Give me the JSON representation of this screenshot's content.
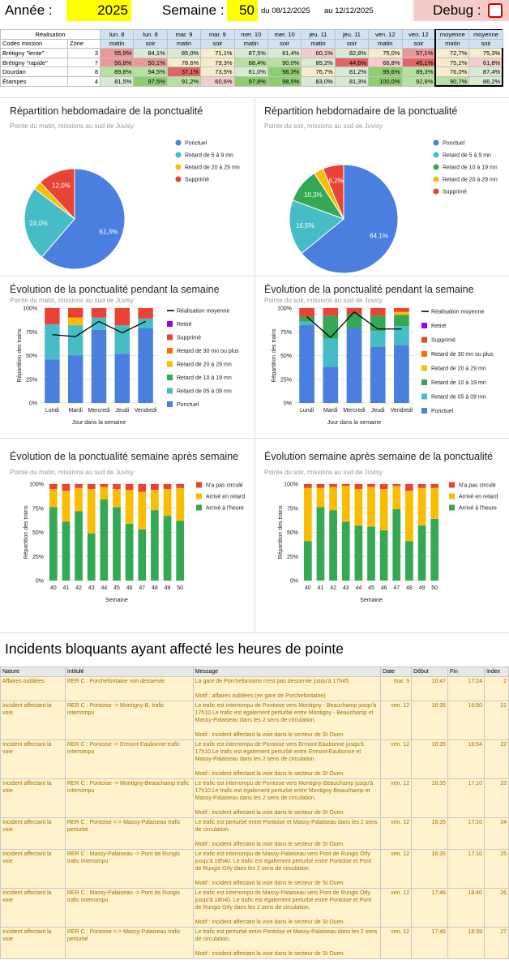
{
  "header": {
    "annee_label": "Année :",
    "annee": "2025",
    "semaine_label": "Semaine :",
    "semaine": "50",
    "du": "du 08/12/2025",
    "au": "au 12/12/2025",
    "debug_label": "Debug :"
  },
  "realisation": {
    "label": "Réalisation",
    "days": [
      "lun. 8",
      "lun. 8",
      "mar. 9",
      "mar. 9",
      "mer. 10",
      "mer. 10",
      "jeu. 11",
      "jeu. 11",
      "ven. 12",
      "ven. 12",
      "moyenne",
      "moyenne"
    ],
    "periods": [
      "matin",
      "soir",
      "matin",
      "soir",
      "matin",
      "soir",
      "matin",
      "soir",
      "matin",
      "soir",
      "matin",
      "soir"
    ],
    "col1": "Codes mission",
    "col2": "Zone",
    "rows": [
      {
        "name": "Brétigny \"lente\"",
        "zone": "3",
        "vals": [
          "55,9%",
          "84,1%",
          "85,0%",
          "71,1%",
          "87,5%",
          "81,4%",
          "60,1%",
          "82,8%",
          "75,0%",
          "57,1%",
          "72,7%",
          "75,3%"
        ]
      },
      {
        "name": "Brétigny \"rapide\"",
        "zone": "7",
        "vals": [
          "56,8%",
          "50,1%",
          "78,6%",
          "79,3%",
          "88,4%",
          "90,0%",
          "85,2%",
          "44,6%",
          "66,8%",
          "45,1%",
          "75,2%",
          "61,8%"
        ]
      },
      {
        "name": "Dourdan",
        "zone": "8",
        "vals": [
          "89,8%",
          "94,5%",
          "37,1%",
          "73,5%",
          "81,0%",
          "98,3%",
          "76,7%",
          "81,2%",
          "95,6%",
          "89,3%",
          "76,0%",
          "87,4%"
        ]
      },
      {
        "name": "Étampes",
        "zone": "4",
        "vals": [
          "81,5%",
          "97,5%",
          "91,2%",
          "60,6%",
          "97,8%",
          "98,5%",
          "83,0%",
          "81,3%",
          "100,0%",
          "92,9%",
          "90,7%",
          "86,2%"
        ]
      }
    ]
  },
  "colors": {
    "ponctuel": "#4a7fe0",
    "retard5": "#46bdc6",
    "retard10": "#34a853",
    "retard20": "#fbbc04",
    "retard30": "#ff6d01",
    "supprime": "#ea4335",
    "retire": "#9900ff",
    "line": "#000000"
  },
  "charts": {
    "pie_matin": {
      "title": "Répartition hebdomadaire de la ponctualité",
      "subtitle": "Pointe du matin, missions au sud de Juvisy"
    },
    "pie_soir": {
      "title": "Répartition hebdomadaire de la ponctualité",
      "subtitle": "Pointe du soir, missions au sud de Juvisy"
    },
    "jour_matin": {
      "title": "Évolution de la ponctualité pendant la semaine",
      "subtitle": "Pointe du matin, missions au sud de Juvisy"
    },
    "jour_soir": {
      "title": "Évolution de la ponctualité pendant la semaine",
      "subtitle": "Pointe du soir, missions au sud de Juvisy"
    },
    "sem_matin": {
      "title": "Évolution de la ponctualité semaine après semaine",
      "subtitle": "Pointe du matin, missions au sud de Juvisy"
    },
    "sem_soir": {
      "title": "Évolution semaine après semaine de la ponctualité",
      "subtitle": "Pointe du soir, missions au sud de Juvisy"
    }
  },
  "chart_data": [
    {
      "type": "pie",
      "id": "pie_matin",
      "title": "Répartition hebdomadaire de la ponctualité",
      "slices": [
        {
          "name": "Ponctuel",
          "value": 61.3,
          "label": "61,3%"
        },
        {
          "name": "Retard de 5 à 9 mn",
          "value": 24.0,
          "label": "24,0%"
        },
        {
          "name": "Retard de 20 à 29 mn",
          "value": 2.7,
          "label": ""
        },
        {
          "name": "Supprimé",
          "value": 12.0,
          "label": "12,0%"
        }
      ]
    },
    {
      "type": "pie",
      "id": "pie_soir",
      "title": "Répartition hebdomadaire de la ponctualité",
      "slices": [
        {
          "name": "Ponctuel",
          "value": 64.1,
          "label": "64,1%"
        },
        {
          "name": "Retard de 5 à 9 mn",
          "value": 16.5,
          "label": "16,5%"
        },
        {
          "name": "Retard de 10 à 19 mn",
          "value": 10.3,
          "label": "10,3%"
        },
        {
          "name": "Retard de 20 à 29 mn",
          "value": 2.9,
          "label": ""
        },
        {
          "name": "Supprimé",
          "value": 6.2,
          "label": "6,2%"
        }
      ]
    },
    {
      "type": "bar",
      "id": "jour_matin",
      "stacked": true,
      "categories": [
        "Lundi",
        "Mardi",
        "Mercredi",
        "Jeudi",
        "Vendredi"
      ],
      "xlabel": "Jour dans la semaine",
      "ylabel": "Répartition des trains",
      "yticks": [
        "0%",
        "25%",
        "50%",
        "75%",
        "100%"
      ],
      "series": [
        {
          "name": "Ponctuel",
          "key": "ponctuel",
          "values": [
            46,
            50,
            77,
            52,
            79
          ]
        },
        {
          "name": "Retard de 05 à 09 mn",
          "key": "retard5",
          "values": [
            37,
            32,
            13,
            30,
            10
          ]
        },
        {
          "name": "Retard de 10 à 19 mn",
          "key": "retard10",
          "values": [
            0,
            0,
            0,
            0,
            0
          ]
        },
        {
          "name": "Retard de 20 à 29 mn",
          "key": "retard20",
          "values": [
            0,
            8,
            0,
            0,
            0
          ]
        },
        {
          "name": "Retard de 30 mn ou plus",
          "key": "retard30",
          "values": [
            0,
            0,
            0,
            0,
            0
          ]
        },
        {
          "name": "Supprimé",
          "key": "supprime",
          "values": [
            17,
            10,
            10,
            18,
            11
          ]
        },
        {
          "name": "Retiré",
          "key": "retire",
          "values": [
            0,
            0,
            0,
            0,
            0
          ]
        }
      ],
      "line": {
        "name": "Réalisation moyenne",
        "values": [
          72,
          70,
          86,
          74,
          86
        ]
      },
      "legend": [
        "Réalisation moyenne",
        "Retiré",
        "Supprimé",
        "Retard de 30 mn ou plus",
        "Retard de 20 à 29 mn",
        "Retard de 10 à 19 mn",
        "Retard de 05 à 09 mn",
        "Ponctuel"
      ]
    },
    {
      "type": "bar",
      "id": "jour_soir",
      "stacked": true,
      "categories": [
        "Lundi",
        "Mardi",
        "Mercredi",
        "Jeudi",
        "Vendredi"
      ],
      "xlabel": "Jour dans la semaine",
      "ylabel": "Répartition des trains",
      "yticks": [
        "0%",
        "25%",
        "50%",
        "75%",
        "100%"
      ],
      "series": [
        {
          "name": "Ponctuel",
          "key": "ponctuel",
          "values": [
            82,
            38,
            79,
            59,
            61
          ]
        },
        {
          "name": "Retard de 05 à 09 mn",
          "key": "retard5",
          "values": [
            4,
            30,
            0,
            17,
            20
          ]
        },
        {
          "name": "Retard de 10 à 19 mn",
          "key": "retard10",
          "values": [
            5,
            24,
            15,
            16,
            12
          ]
        },
        {
          "name": "Retard de 20 à 29 mn",
          "key": "retard20",
          "values": [
            0,
            0,
            0,
            0,
            3
          ]
        },
        {
          "name": "Retard de 30 mn ou plus",
          "key": "retard30",
          "values": [
            0,
            0,
            0,
            0,
            0
          ]
        },
        {
          "name": "Supprimé",
          "key": "supprime",
          "values": [
            9,
            8,
            6,
            8,
            4
          ]
        },
        {
          "name": "Retiré",
          "key": "retire",
          "values": [
            0,
            0,
            0,
            0,
            0
          ]
        }
      ],
      "line": {
        "name": "Réalisation moyenne",
        "values": [
          91,
          69,
          96,
          78,
          78
        ]
      },
      "legend": [
        "Réalisation moyenne",
        "Retiré",
        "Supprimé",
        "Retard de 30 mn ou plus",
        "Retard de 20 à 29 mn",
        "Retard de 10 à 19 mn",
        "Retard de 05 à 09 mn",
        "Ponctuel"
      ]
    },
    {
      "type": "bar",
      "id": "sem_matin",
      "stacked": true,
      "categories": [
        "40",
        "41",
        "42",
        "43",
        "44",
        "45",
        "46",
        "47",
        "48",
        "49",
        "50"
      ],
      "xlabel": "Semaine",
      "ylabel": "Répartition des trains",
      "yticks": [
        "0%",
        "25%",
        "50%",
        "75%",
        "100%"
      ],
      "series": [
        {
          "name": "Arrivé à l'heure",
          "key": "retard10",
          "values": [
            76,
            61,
            72,
            49,
            84,
            76,
            59,
            53,
            73,
            67,
            62
          ]
        },
        {
          "name": "Arrivé en retard",
          "key": "retard20",
          "values": [
            19,
            32,
            24,
            46,
            13,
            19,
            35,
            39,
            21,
            28,
            34
          ]
        },
        {
          "name": "N'a pas circulé",
          "key": "supprime",
          "values": [
            5,
            7,
            4,
            5,
            3,
            5,
            6,
            8,
            6,
            5,
            4
          ]
        }
      ],
      "legend": [
        "N'a pas circulé",
        "Arrivé en retard",
        "Arrivé à l'heure"
      ]
    },
    {
      "type": "bar",
      "id": "sem_soir",
      "stacked": true,
      "categories": [
        "40",
        "41",
        "42",
        "43",
        "44",
        "45",
        "46",
        "47",
        "48",
        "49",
        "50"
      ],
      "xlabel": "Semaine",
      "ylabel": "Répartition des trains",
      "yticks": [
        "0%",
        "25%",
        "50%",
        "75%",
        "100%"
      ],
      "series": [
        {
          "name": "Arrivé à l'heure",
          "key": "retard10",
          "values": [
            41,
            76,
            73,
            61,
            57,
            56,
            52,
            74,
            41,
            57,
            64
          ]
        },
        {
          "name": "Arrivé en retard",
          "key": "retard20",
          "values": [
            55,
            20,
            24,
            37,
            38,
            41,
            43,
            24,
            52,
            39,
            32
          ]
        },
        {
          "name": "N'a pas circulé",
          "key": "supprime",
          "values": [
            4,
            4,
            3,
            2,
            5,
            3,
            5,
            2,
            7,
            4,
            4
          ]
        }
      ],
      "legend": [
        "N'a pas circulé",
        "Arrivé en retard",
        "Arrivé à l'heure"
      ]
    }
  ],
  "incidents": {
    "title": "Incidents bloquants ayant affecté les heures de pointe",
    "headers": [
      "Nature",
      "Intitulé",
      "Message",
      "Date",
      "Début",
      "Fin",
      "Index"
    ],
    "rows": [
      {
        "nature": "Affaires oubliées",
        "intitule": "RER C : Porchefontaine non desservie",
        "message": "La gare de Porchefontaine n'est pas desservie jusqu'à 17h45.",
        "motif": "Motif : affaires oubliées (en gare de Porchefontaine).",
        "date": "mar. 9",
        "debut": "16:47",
        "fin": "17:24",
        "index": "2"
      },
      {
        "nature": "Incident affectant la voie",
        "intitule": "RER C : Pontoise -> Montigny-B. trafic interrompu",
        "message": "Le trafic est interrompu de Pontoise vers Montigny - Beauchamp jusqu'à 17h10.Le trafic est également perturbé entre Montigny - Beauchamp et Massy-Palaiseau dans les 2 sens de circulation.",
        "motif": "Motif : incident affectant la voie dans le secteur de St Ouen.",
        "date": "ven. 12",
        "debut": "16:35",
        "fin": "16:50",
        "index": "21"
      },
      {
        "nature": "Incident affectant la voie",
        "intitule": "RER C : Pontoise -> Ermont-Eaubonne trafic interrompu",
        "message": "Le trafic est interrompu de Pontoise vers Ermont-Eaubonne jusqu'à 17h10.Le trafic est également perturbé entre Ermont-Eaubonne et Massy-Palaiseau dans les 2 sens de circulation.",
        "motif": "Motif : incident affectant la voie dans le secteur de St Ouen.",
        "date": "ven. 12",
        "debut": "16:35",
        "fin": "16:54",
        "index": "22"
      },
      {
        "nature": "Incident affectant la voie",
        "intitule": "RER C : Pontoise -> Montigny-Beauchamp trafic interrompu",
        "message": "Le trafic est interrompu de Pontoise vers Montigny-Beauchamp jusqu'à 17h10.Le trafic est également perturbé entre Montigny-Beauchamp et Massy-Palaiseau dans les 2 sens de circulation.",
        "motif": "Motif : incident affectant la voie dans le secteur de St Ouen.",
        "date": "ven. 12",
        "debut": "16:35",
        "fin": "17:10",
        "index": "23"
      },
      {
        "nature": "Incident affectant la voie",
        "intitule": "RER C : Pontoise <-> Massy-Palaiseau trafic perturbé",
        "message": "Le trafic est perturbé entre Pontoise et Massy-Palaiseau dans les 2 sens de circulation.",
        "motif": "Motif : incident affectant la voie dans le secteur de St Ouen.",
        "date": "ven. 12",
        "debut": "16:35",
        "fin": "17:10",
        "index": "24"
      },
      {
        "nature": "Incident affectant la voie",
        "intitule": "RER C : Massy-Palaiseau -> Pont de Rungis trafic interrompu",
        "message": "Le trafic est interrompu de Massy-Palaiseau vers Pont de Rungis Orly jusqu'à 18h40. Le trafic est également perturbé entre Pontoise et Pont de Rungis Orly dans les 2 sens de circulation.",
        "motif": "Motif : incident affectant la voie dans le secteur de St Ouen.",
        "date": "ven. 12",
        "debut": "16:35",
        "fin": "17:10",
        "index": "25"
      },
      {
        "nature": "Incident affectant la voie",
        "intitule": "RER C : Massy-Palaiseau -> Pont de Rungis trafic interrompu",
        "message": "Le trafic est interrompu de Massy-Palaiseau vers Pont de Rungis Orly jusqu'à 18h40. Le trafic est également perturbé entre Pontoise et Pont de Rungis Orly dans les 2 sens de circulation.",
        "motif": "Motif : incident affectant la voie dans le secteur de St Ouen.",
        "date": "ven. 12",
        "debut": "17:46",
        "fin": "18:40",
        "index": "26"
      },
      {
        "nature": "Incident affectant la voie",
        "intitule": "RER C : Pontoise <-> Massy-Palaiseau trafic perturbé",
        "message": "Le trafic est perturbé entre Pontoise et Massy-Palaiseau dans les 2 sens de circulation.",
        "motif": "Motif : incident affectant la voie dans le secteur de St Ouen.",
        "date": "ven. 12",
        "debut": "17:46",
        "fin": "18:39",
        "index": "27"
      }
    ]
  }
}
